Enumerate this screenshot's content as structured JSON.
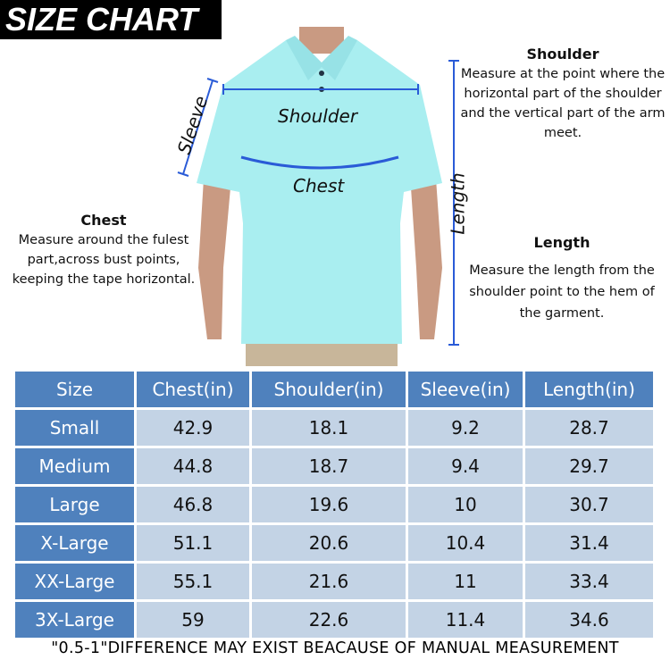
{
  "title": "SIZE CHART",
  "figure_labels": {
    "sleeve": "Sleeve",
    "shoulder": "Shoulder",
    "chest": "Chest",
    "length": "Length"
  },
  "notes": {
    "shoulder": {
      "heading": "Shoulder",
      "text": "Measure at the point where the horizontal part of the shoulder and the vertical part of the arm meet."
    },
    "chest": {
      "heading": "Chest",
      "text": "Measure around the fulest part,across bust points, keeping the tape horizontal."
    },
    "length": {
      "heading": "Length",
      "text": "Measure the length from the shoulder point to the hem of the garment."
    }
  },
  "colors": {
    "header": "#4f81bd",
    "cell": "#c3d3e5",
    "shirt": "#a9eef0",
    "measure_line": "#2a5bd7"
  },
  "table": {
    "headers": [
      "Size",
      "Chest(in)",
      "Shoulder(in)",
      "Sleeve(in)",
      "Length(in)"
    ],
    "rows": [
      [
        "Small",
        "42.9",
        "18.1",
        "9.2",
        "28.7"
      ],
      [
        "Medium",
        "44.8",
        "18.7",
        "9.4",
        "29.7"
      ],
      [
        "Large",
        "46.8",
        "19.6",
        "10",
        "30.7"
      ],
      [
        "X-Large",
        "51.1",
        "20.6",
        "10.4",
        "31.4"
      ],
      [
        "XX-Large",
        "55.1",
        "21.6",
        "11",
        "33.4"
      ],
      [
        "3X-Large",
        "59",
        "22.6",
        "11.4",
        "34.6"
      ]
    ]
  },
  "footer": "\"0.5-1\"DIFFERENCE MAY EXIST BEACAUSE OF MANUAL MEASUREMENT"
}
